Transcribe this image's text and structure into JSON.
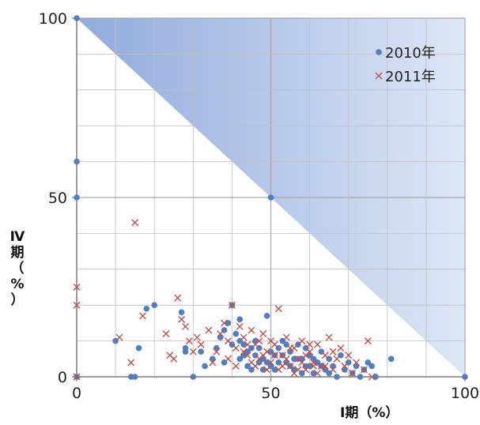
{
  "chart_data": {
    "type": "scatter",
    "xlabel": "Ⅰ期（%）",
    "ylabel": "Ⅳ期（%）",
    "xlim": [
      0,
      100
    ],
    "ylim": [
      0,
      100
    ],
    "x_ticks": [
      "0",
      "50",
      "100"
    ],
    "y_ticks": [
      "0",
      "50",
      "100"
    ],
    "grid": true,
    "legend_position": "top-right",
    "colors": {
      "series_2010": "#4f7ec2",
      "series_2011": "#c0504d",
      "shaded_region": "#b3c6e9",
      "grid": "#bfbfbf",
      "axis": "#808080"
    },
    "series": [
      {
        "name": "2010年",
        "marker": "circle",
        "points": [
          [
            0,
            100
          ],
          [
            0,
            60
          ],
          [
            0,
            50
          ],
          [
            0,
            0
          ],
          [
            50,
            50
          ],
          [
            100,
            0
          ],
          [
            10,
            10
          ],
          [
            14,
            0
          ],
          [
            15,
            0
          ],
          [
            16,
            8
          ],
          [
            18,
            19
          ],
          [
            20,
            20
          ],
          [
            27,
            18
          ],
          [
            28,
            8
          ],
          [
            28,
            7
          ],
          [
            30,
            0
          ],
          [
            32,
            7
          ],
          [
            33,
            3
          ],
          [
            35,
            5
          ],
          [
            36,
            8
          ],
          [
            37,
            11
          ],
          [
            38,
            13
          ],
          [
            39,
            15
          ],
          [
            40,
            20
          ],
          [
            41,
            12
          ],
          [
            42,
            16
          ],
          [
            42,
            10
          ],
          [
            43,
            9
          ],
          [
            44,
            7
          ],
          [
            45,
            8
          ],
          [
            46,
            6
          ],
          [
            47,
            4
          ],
          [
            48,
            5
          ],
          [
            49,
            17
          ],
          [
            50,
            3
          ],
          [
            51,
            6
          ],
          [
            52,
            8
          ],
          [
            53,
            10
          ],
          [
            54,
            4
          ],
          [
            55,
            7
          ],
          [
            56,
            2
          ],
          [
            57,
            9
          ],
          [
            58,
            5
          ],
          [
            59,
            3
          ],
          [
            60,
            6
          ],
          [
            61,
            1
          ],
          [
            62,
            4
          ],
          [
            63,
            7
          ],
          [
            64,
            2
          ],
          [
            65,
            5
          ],
          [
            66,
            3
          ],
          [
            67,
            0
          ],
          [
            68,
            6
          ],
          [
            69,
            2
          ],
          [
            70,
            4
          ],
          [
            71,
            1
          ],
          [
            72,
            3
          ],
          [
            73,
            0
          ],
          [
            74,
            2
          ],
          [
            75,
            4
          ],
          [
            76,
            3
          ],
          [
            77,
            0
          ],
          [
            81,
            5
          ],
          [
            38,
            4
          ],
          [
            40,
            9
          ],
          [
            42,
            5
          ],
          [
            44,
            3
          ],
          [
            46,
            10
          ],
          [
            48,
            2
          ],
          [
            50,
            7
          ],
          [
            52,
            4
          ],
          [
            54,
            9
          ],
          [
            56,
            5
          ],
          [
            58,
            1
          ],
          [
            60,
            3
          ],
          [
            43,
            6
          ],
          [
            45,
            2
          ],
          [
            47,
            8
          ],
          [
            49,
            4
          ],
          [
            51,
            2
          ],
          [
            53,
            6
          ],
          [
            55,
            3
          ],
          [
            57,
            5
          ],
          [
            59,
            8
          ],
          [
            61,
            5
          ],
          [
            63,
            3
          ],
          [
            65,
            1
          ]
        ]
      },
      {
        "name": "2011年",
        "marker": "x",
        "points": [
          [
            0,
            25
          ],
          [
            0,
            20
          ],
          [
            0,
            0
          ],
          [
            11,
            11
          ],
          [
            14,
            4
          ],
          [
            15,
            43
          ],
          [
            17,
            17
          ],
          [
            23,
            12
          ],
          [
            24,
            6
          ],
          [
            25,
            5
          ],
          [
            26,
            22
          ],
          [
            27,
            16
          ],
          [
            28,
            14
          ],
          [
            29,
            10
          ],
          [
            30,
            7
          ],
          [
            31,
            11
          ],
          [
            32,
            9
          ],
          [
            34,
            13
          ],
          [
            35,
            4
          ],
          [
            36,
            7
          ],
          [
            37,
            12
          ],
          [
            38,
            15
          ],
          [
            39,
            10
          ],
          [
            40,
            20
          ],
          [
            41,
            8
          ],
          [
            42,
            14
          ],
          [
            43,
            11
          ],
          [
            44,
            6
          ],
          [
            45,
            13
          ],
          [
            46,
            9
          ],
          [
            47,
            5
          ],
          [
            48,
            12
          ],
          [
            49,
            7
          ],
          [
            50,
            4
          ],
          [
            51,
            9
          ],
          [
            52,
            19
          ],
          [
            53,
            6
          ],
          [
            54,
            11
          ],
          [
            55,
            3
          ],
          [
            56,
            8
          ],
          [
            57,
            5
          ],
          [
            58,
            10
          ],
          [
            59,
            2
          ],
          [
            60,
            7
          ],
          [
            61,
            4
          ],
          [
            62,
            9
          ],
          [
            63,
            3
          ],
          [
            64,
            6
          ],
          [
            65,
            11
          ],
          [
            66,
            2
          ],
          [
            67,
            5
          ],
          [
            68,
            8
          ],
          [
            69,
            3
          ],
          [
            70,
            6
          ],
          [
            71,
            1
          ],
          [
            72,
            4
          ],
          [
            74,
            2
          ],
          [
            75,
            10
          ],
          [
            76,
            0
          ],
          [
            39,
            5
          ],
          [
            41,
            3
          ],
          [
            43,
            7
          ],
          [
            45,
            4
          ],
          [
            47,
            10
          ],
          [
            49,
            2
          ],
          [
            51,
            6
          ],
          [
            53,
            3
          ],
          [
            55,
            8
          ],
          [
            57,
            2
          ],
          [
            59,
            6
          ],
          [
            61,
            3
          ],
          [
            44,
            9
          ],
          [
            46,
            3
          ],
          [
            48,
            6
          ],
          [
            50,
            10
          ],
          [
            52,
            2
          ],
          [
            54,
            5
          ],
          [
            56,
            1
          ],
          [
            58,
            4
          ],
          [
            60,
            9
          ],
          [
            62,
            1
          ],
          [
            64,
            3
          ],
          [
            66,
            7
          ]
        ]
      }
    ]
  }
}
